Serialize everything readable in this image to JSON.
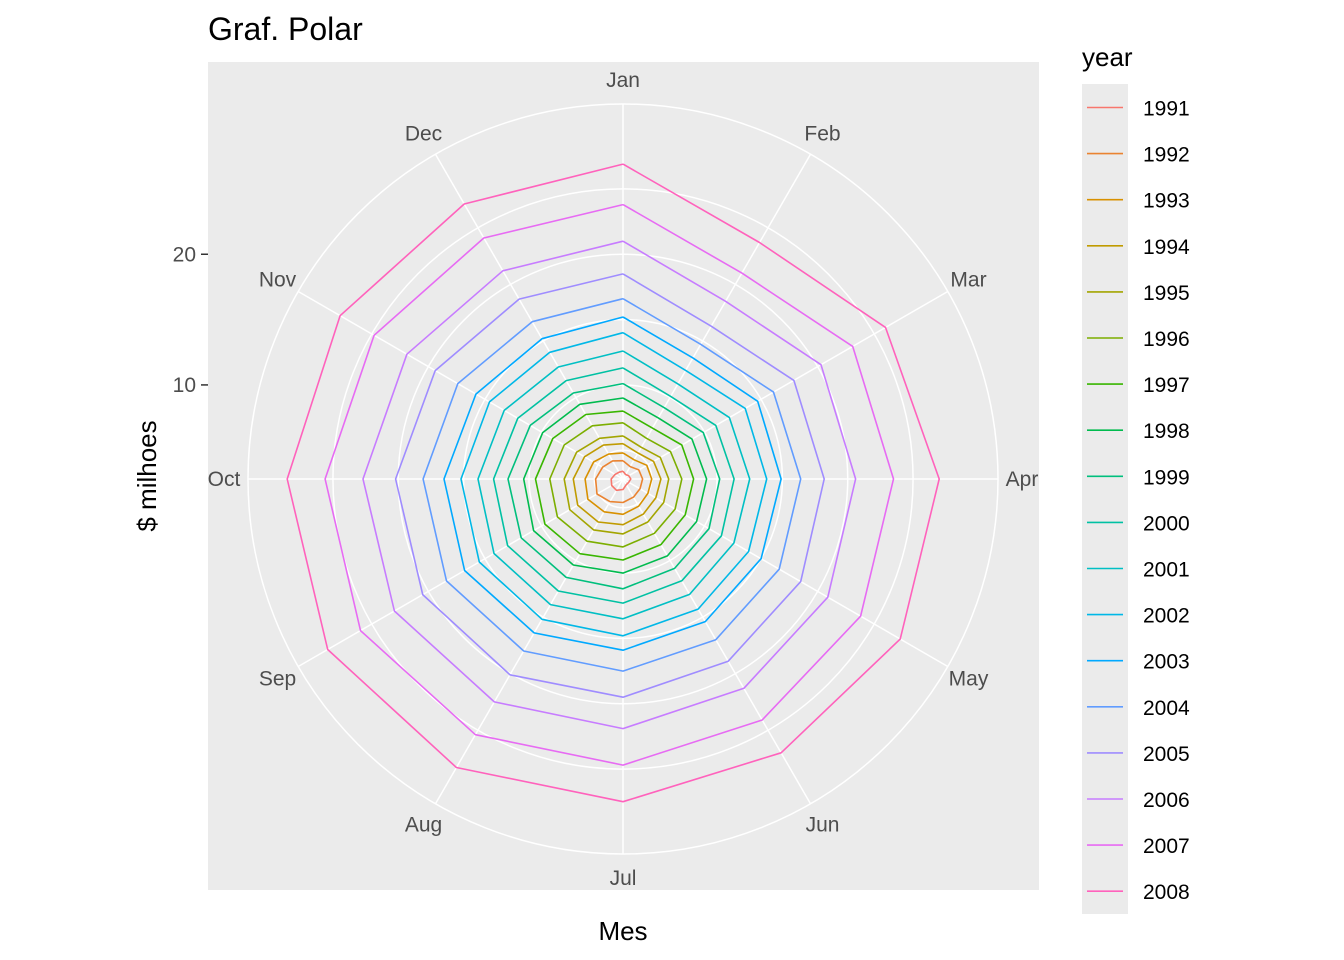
{
  "chart_data": {
    "type": "line",
    "coord": "polar",
    "title": "Graf. Polar",
    "xlabel": "Mes",
    "ylabel": "$ milhoes",
    "months": [
      "Jan",
      "Feb",
      "Mar",
      "Apr",
      "May",
      "Jun",
      "Jul",
      "Aug",
      "Sep",
      "Oct",
      "Nov",
      "Dec"
    ],
    "y_ticks": [
      10,
      20
    ],
    "ylim": [
      2.8,
      31.5
    ],
    "legend_title": "year",
    "legend_position": "right",
    "panel_background": "#ebebeb",
    "grid_color": "#ffffff",
    "series": [
      {
        "name": "1991",
        "color": "#F8766D",
        "values": [
          3.4,
          3.2,
          3.3,
          3.4,
          3.3,
          3.3,
          3.6,
          3.8,
          3.8,
          3.7,
          3.5,
          3.4
        ]
      },
      {
        "name": "1992",
        "color": "#EA8331",
        "values": [
          4.2,
          3.9,
          4.2,
          4.3,
          4.3,
          4.4,
          4.6,
          4.8,
          5.1,
          4.9,
          4.6,
          4.4
        ]
      },
      {
        "name": "1993",
        "color": "#D89000",
        "values": [
          4.8,
          4.5,
          4.9,
          5.0,
          5.0,
          5.2,
          5.5,
          5.7,
          5.9,
          5.7,
          5.4,
          5.0
        ]
      },
      {
        "name": "1994",
        "color": "#C09B00",
        "values": [
          5.5,
          5.1,
          5.5,
          5.7,
          5.7,
          5.9,
          6.3,
          6.6,
          6.8,
          6.6,
          6.2,
          5.8
        ]
      },
      {
        "name": "1995",
        "color": "#A3A500",
        "values": [
          6.1,
          5.6,
          6.1,
          6.3,
          6.4,
          6.6,
          7.0,
          7.3,
          7.5,
          7.3,
          6.9,
          6.4
        ]
      },
      {
        "name": "1996",
        "color": "#7CAE00",
        "values": [
          7.1,
          6.4,
          7.0,
          7.3,
          7.4,
          7.6,
          8.0,
          8.3,
          8.6,
          8.4,
          8.0,
          7.5
        ]
      },
      {
        "name": "1997",
        "color": "#39B600",
        "values": [
          8.0,
          7.3,
          8.0,
          8.2,
          8.3,
          8.6,
          9.0,
          9.4,
          9.7,
          9.5,
          9.0,
          8.5
        ]
      },
      {
        "name": "1998",
        "color": "#00BB4E",
        "values": [
          9.0,
          8.2,
          8.9,
          9.2,
          9.3,
          9.6,
          10.0,
          10.4,
          10.7,
          10.4,
          9.9,
          9.4
        ]
      },
      {
        "name": "1999",
        "color": "#00BF7D",
        "values": [
          10.1,
          9.1,
          9.9,
          10.2,
          10.4,
          10.7,
          11.2,
          11.5,
          11.8,
          11.6,
          11.0,
          10.4
        ]
      },
      {
        "name": "2000",
        "color": "#00C1A3",
        "values": [
          11.3,
          10.1,
          11.0,
          11.3,
          11.5,
          11.8,
          12.3,
          12.7,
          13.0,
          12.7,
          12.1,
          11.5
        ]
      },
      {
        "name": "2001",
        "color": "#00BFC4",
        "values": [
          12.6,
          11.2,
          12.2,
          12.5,
          12.6,
          13.0,
          13.5,
          13.9,
          14.2,
          13.9,
          13.3,
          12.7
        ]
      },
      {
        "name": "2002",
        "color": "#00B8E7",
        "values": [
          14.0,
          12.4,
          13.6,
          13.8,
          13.9,
          14.3,
          14.8,
          15.2,
          15.5,
          15.2,
          14.6,
          14.0
        ]
      },
      {
        "name": "2003",
        "color": "#00A9FF",
        "values": [
          15.2,
          13.5,
          14.7,
          14.9,
          15.0,
          15.4,
          15.9,
          16.4,
          16.8,
          16.5,
          15.8,
          15.2
        ]
      },
      {
        "name": "2004",
        "color": "#619CFF",
        "values": [
          16.6,
          14.7,
          16.1,
          16.4,
          16.6,
          17.0,
          17.5,
          18.0,
          18.4,
          18.1,
          17.4,
          16.7
        ]
      },
      {
        "name": "2005",
        "color": "#9F8CFF",
        "values": [
          18.5,
          16.3,
          17.9,
          18.2,
          18.5,
          18.9,
          19.5,
          20.1,
          20.5,
          20.2,
          19.4,
          18.7
        ]
      },
      {
        "name": "2006",
        "color": "#C77CFF",
        "values": [
          21.0,
          18.5,
          20.3,
          20.6,
          20.9,
          21.3,
          21.9,
          22.5,
          23.0,
          22.7,
          21.9,
          21.2
        ]
      },
      {
        "name": "2007",
        "color": "#E76BF3",
        "values": [
          23.8,
          21.0,
          23.1,
          23.5,
          23.8,
          24.1,
          24.7,
          25.4,
          26.0,
          25.6,
          24.8,
          24.1
        ]
      },
      {
        "name": "2008",
        "color": "#FF62BC",
        "values": [
          26.9,
          23.7,
          26.0,
          27.0,
          27.3,
          27.0,
          27.5,
          28.3,
          28.9,
          28.5,
          27.8,
          27.1
        ]
      }
    ]
  }
}
